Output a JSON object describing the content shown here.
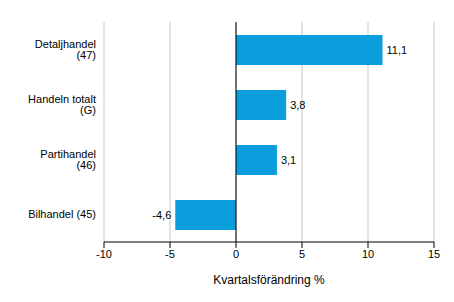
{
  "chart_data": {
    "type": "bar",
    "orientation": "horizontal",
    "categories": [
      "Detaljhandel (47)",
      "Handeln totalt (G)",
      "Partihandel (46)",
      "Bilhandel (45)"
    ],
    "values": [
      11.1,
      3.8,
      3.1,
      -4.6
    ],
    "value_labels": [
      "11,1",
      "3,8",
      "3,1",
      "-4,6"
    ],
    "data_labels": true,
    "color": "#0a9fdc",
    "xlim": [
      -10,
      15
    ],
    "xticks": [
      -10,
      -5,
      0,
      5,
      10,
      15
    ],
    "x_label": "Kvartalsförändring %",
    "grid": true
  }
}
